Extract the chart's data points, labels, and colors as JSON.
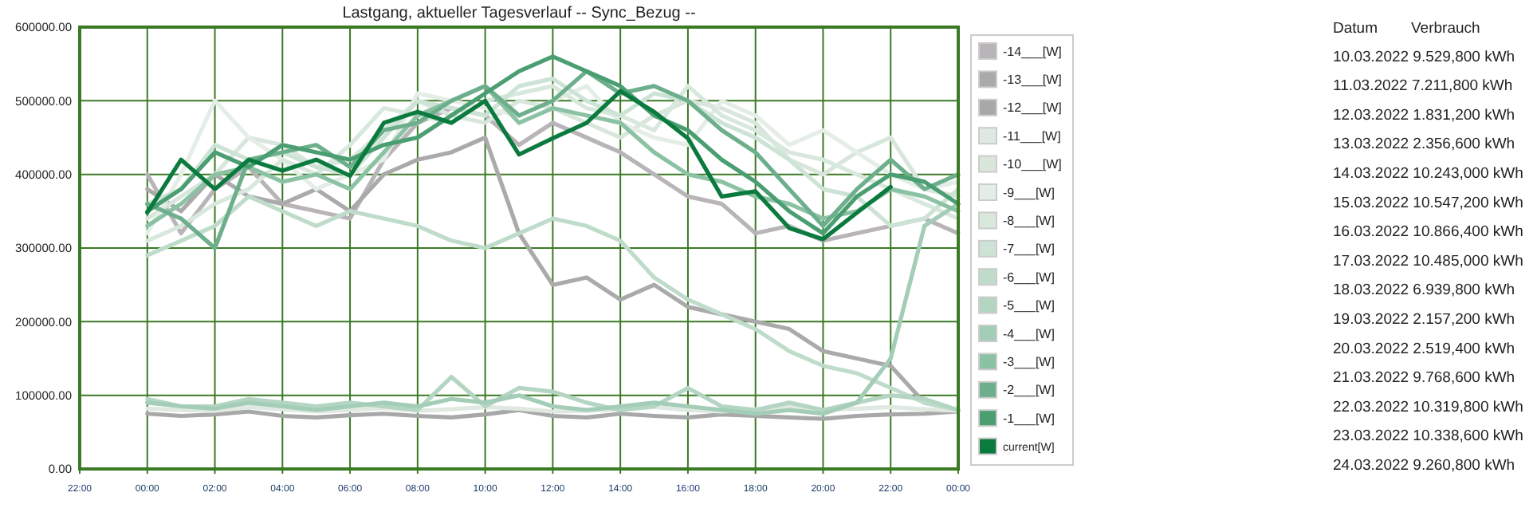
{
  "chart_data": {
    "type": "line",
    "title": "Lastgang, aktueller Tagesverlauf -- Sync_Bezug --",
    "x": [
      "2022-03-24T00:00",
      "2022-03-24T01:00",
      "2022-03-24T02:00",
      "2022-03-24T03:00",
      "2022-03-24T04:00",
      "2022-03-24T05:00",
      "2022-03-24T06:00",
      "2022-03-24T07:00",
      "2022-03-24T08:00",
      "2022-03-24T09:00",
      "2022-03-24T10:00",
      "2022-03-24T11:00",
      "2022-03-24T12:00",
      "2022-03-24T13:00",
      "2022-03-24T14:00",
      "2022-03-24T15:00",
      "2022-03-24T16:00",
      "2022-03-24T17:00",
      "2022-03-24T18:00",
      "2022-03-24T19:00",
      "2022-03-24T20:00",
      "2022-03-24T21:00",
      "2022-03-24T22:00",
      "2022-03-24T23:00",
      "2022-03-25T00:00"
    ],
    "xlim": [
      "2022-03-23T22:00",
      "2022-03-25T00:00"
    ],
    "xticks": [
      {
        "value": "2022-03-23T22:00",
        "label": "22:00"
      },
      {
        "value": "2022-03-24T00:00",
        "label": "00:00"
      },
      {
        "value": "2022-03-24T02:00",
        "label": "02:00"
      },
      {
        "value": "2022-03-24T04:00",
        "label": "04:00"
      },
      {
        "value": "2022-03-24T06:00",
        "label": "06:00"
      },
      {
        "value": "2022-03-24T08:00",
        "label": "08:00"
      },
      {
        "value": "2022-03-24T10:00",
        "label": "10:00"
      },
      {
        "value": "2022-03-24T12:00",
        "label": "12:00"
      },
      {
        "value": "2022-03-24T14:00",
        "label": "14:00"
      },
      {
        "value": "2022-03-24T16:00",
        "label": "16:00"
      },
      {
        "value": "2022-03-24T18:00",
        "label": "18:00"
      },
      {
        "value": "2022-03-24T20:00",
        "label": "20:00"
      },
      {
        "value": "2022-03-24T22:00",
        "label": "22:00"
      },
      {
        "value": "2022-03-25T00:00",
        "label": "00:00"
      }
    ],
    "ylim": [
      0,
      600000
    ],
    "yticks": [
      {
        "value": 0,
        "label": "0.00"
      },
      {
        "value": 100000,
        "label": "100000.00"
      },
      {
        "value": 200000,
        "label": "200000.00"
      },
      {
        "value": 300000,
        "label": "300000.00"
      },
      {
        "value": 400000,
        "label": "400000.00"
      },
      {
        "value": 500000,
        "label": "500000.00"
      },
      {
        "value": 600000,
        "label": "600000.00"
      }
    ],
    "grid": true,
    "legend": "right",
    "series": [
      {
        "name": "-14___[W]",
        "color": "#b8b4b8",
        "values": [
          400000,
          320000,
          380000,
          410000,
          360000,
          350000,
          340000,
          420000,
          470000,
          490000,
          480000,
          440000,
          470000,
          450000,
          430000,
          400000,
          370000,
          360000,
          320000,
          330000,
          310000,
          320000,
          330000,
          340000,
          320000
        ]
      },
      {
        "name": "-13___[W]",
        "color": "#aaaaaa",
        "values": [
          380000,
          350000,
          400000,
          370000,
          360000,
          380000,
          350000,
          400000,
          420000,
          430000,
          450000,
          320000,
          250000,
          260000,
          230000,
          250000,
          220000,
          210000,
          200000,
          190000,
          160000,
          150000,
          140000,
          90000,
          80000
        ]
      },
      {
        "name": "-12___[W]",
        "color": "#a8a8a8",
        "values": [
          75000,
          72000,
          74000,
          78000,
          72000,
          70000,
          73000,
          75000,
          72000,
          70000,
          74000,
          80000,
          72000,
          70000,
          75000,
          72000,
          70000,
          74000,
          72000,
          70000,
          68000,
          72000,
          74000,
          75000,
          78000
        ]
      },
      {
        "name": "-11___[W]",
        "color": "#dfe9e1",
        "values": [
          82000,
          80000,
          79000,
          84000,
          81000,
          78000,
          80000,
          83000,
          79000,
          81000,
          84000,
          82000,
          78000,
          79000,
          81000,
          84000,
          80000,
          78000,
          81000,
          84000,
          80000,
          82000,
          84000,
          81000,
          79000
        ]
      },
      {
        "name": "-10___[W]",
        "color": "#d9e6dc",
        "values": [
          340000,
          370000,
          400000,
          450000,
          440000,
          410000,
          420000,
          460000,
          500000,
          480000,
          470000,
          500000,
          490000,
          470000,
          450000,
          480000,
          500000,
          490000,
          470000,
          420000,
          400000,
          430000,
          450000,
          380000,
          370000
        ]
      },
      {
        "name": "-9___[W]",
        "color": "#e4eee7",
        "values": [
          320000,
          400000,
          500000,
          450000,
          420000,
          380000,
          400000,
          420000,
          510000,
          500000,
          490000,
          480000,
          500000,
          520000,
          470000,
          450000,
          440000,
          500000,
          480000,
          440000,
          460000,
          430000,
          400000,
          380000,
          390000
        ]
      },
      {
        "name": "-8___[W]",
        "color": "#d8e8dd",
        "values": [
          310000,
          330000,
          360000,
          380000,
          420000,
          400000,
          440000,
          490000,
          480000,
          470000,
          500000,
          510000,
          520000,
          490000,
          480000,
          460000,
          520000,
          480000,
          460000,
          430000,
          420000,
          400000,
          380000,
          360000,
          340000
        ]
      },
      {
        "name": "-7___[W]",
        "color": "#cde3d5",
        "values": [
          360000,
          380000,
          440000,
          420000,
          430000,
          410000,
          400000,
          450000,
          500000,
          490000,
          480000,
          520000,
          530000,
          500000,
          480000,
          510000,
          500000,
          470000,
          450000,
          420000,
          380000,
          370000,
          330000,
          340000,
          380000
        ]
      },
      {
        "name": "-6___[W]",
        "color": "#bfdccb",
        "values": [
          290000,
          310000,
          330000,
          370000,
          350000,
          330000,
          350000,
          340000,
          330000,
          310000,
          300000,
          320000,
          340000,
          330000,
          310000,
          260000,
          230000,
          210000,
          190000,
          160000,
          140000,
          130000,
          110000,
          90000,
          80000
        ]
      },
      {
        "name": "-5___[W]",
        "color": "#b3d5c1",
        "values": [
          95000,
          85000,
          85000,
          95000,
          90000,
          85000,
          90000,
          85000,
          80000,
          125000,
          85000,
          110000,
          105000,
          90000,
          80000,
          85000,
          110000,
          85000,
          80000,
          90000,
          80000,
          90000,
          100000,
          95000,
          80000
        ]
      },
      {
        "name": "-4___[W]",
        "color": "#a3cdb6",
        "values": [
          90000,
          85000,
          82000,
          90000,
          85000,
          80000,
          85000,
          90000,
          85000,
          95000,
          90000,
          100000,
          85000,
          80000,
          85000,
          90000,
          85000,
          80000,
          75000,
          80000,
          75000,
          90000,
          150000,
          330000,
          360000
        ]
      },
      {
        "name": "-3___[W]",
        "color": "#8cc2a4",
        "values": [
          330000,
          360000,
          400000,
          410000,
          390000,
          400000,
          380000,
          430000,
          480000,
          500000,
          520000,
          470000,
          490000,
          480000,
          470000,
          430000,
          400000,
          390000,
          370000,
          360000,
          340000,
          350000,
          380000,
          370000,
          350000
        ]
      },
      {
        "name": "-2___[W]",
        "color": "#6daf8c",
        "values": [
          360000,
          340000,
          300000,
          420000,
          430000,
          440000,
          410000,
          460000,
          470000,
          500000,
          520000,
          480000,
          500000,
          540000,
          510000,
          520000,
          500000,
          460000,
          430000,
          380000,
          330000,
          380000,
          420000,
          380000,
          400000
        ]
      },
      {
        "name": "-1___[W]",
        "color": "#4a9e72",
        "values": [
          350000,
          380000,
          430000,
          410000,
          440000,
          430000,
          420000,
          440000,
          450000,
          480000,
          510000,
          540000,
          560000,
          540000,
          520000,
          480000,
          460000,
          420000,
          390000,
          350000,
          320000,
          370000,
          400000,
          390000,
          360000
        ]
      },
      {
        "name": "current[W]",
        "color": "#0b7a3e",
        "values": [
          348000,
          420000,
          380000,
          420000,
          405000,
          420000,
          398000,
          470000,
          485000,
          470000,
          500000,
          427000,
          449000,
          470000,
          513000,
          485000,
          449000,
          370000,
          377000,
          327000,
          312000,
          348000,
          383000,
          null,
          null
        ]
      }
    ],
    "annotations": [
      "Datum",
      "Verbrauch",
      "10.03.2022 9.529,800 kWh",
      "11.03.2022 7.211,800 kWh",
      "12.03.2022 1.831,200 kWh",
      "13.03.2022 2.356,600 kWh",
      "14.03.2022 10.243,000 kWh",
      "15.03.2022 10.547,200 kWh",
      "16.03.2022 10.866,400 kWh",
      "17.03.2022 10.485,000 kWh",
      "18.03.2022 6.939,800 kWh",
      "19.03.2022 2.157,200 kWh",
      "20.03.2022 2.519,400 kWh",
      "21.03.2022 9.768,600 kWh",
      "22.03.2022 10.319,800 kWh",
      "23.03.2022 10.338,600 kWh",
      "24.03.2022 9.260,800 kWh"
    ]
  }
}
